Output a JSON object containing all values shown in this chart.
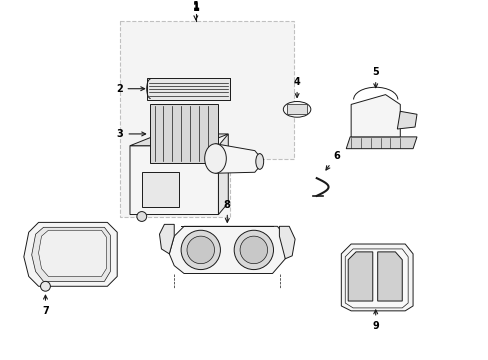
{
  "background_color": "#ffffff",
  "line_color": "#1a1a1a",
  "label_color": "#000000",
  "fig_width": 4.89,
  "fig_height": 3.6,
  "dpi": 100,
  "box_fill": "#ebebeb",
  "part_fill": "#f5f5f5",
  "hatch_fill": "#e0e0e0"
}
